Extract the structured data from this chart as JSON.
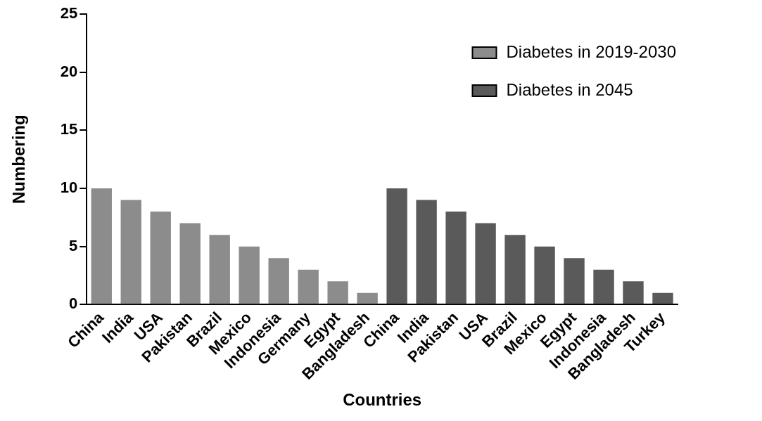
{
  "chart_data": {
    "type": "bar",
    "xlabel": "Countries",
    "ylabel": "Numbering",
    "categories": [
      "China",
      "India",
      "USA",
      "Pakistan",
      "Brazil",
      "Mexico",
      "Indonesia",
      "Germany",
      "Egypt",
      "Bangladesh",
      "China",
      "India",
      "Pakistan",
      "USA",
      "Brazil",
      "Mexico",
      "Egypt",
      "Indonesia",
      "Bangladesh",
      "Turkey"
    ],
    "series": [
      {
        "name": "Diabetes in 2019-2030",
        "color": "#8c8c8c",
        "values": [
          10,
          9,
          8,
          7,
          6,
          5,
          4,
          3,
          2,
          1,
          null,
          null,
          null,
          null,
          null,
          null,
          null,
          null,
          null,
          null
        ]
      },
      {
        "name": "Diabetes in 2045",
        "color": "#5a5a5a",
        "values": [
          null,
          null,
          null,
          null,
          null,
          null,
          null,
          null,
          null,
          null,
          10,
          9,
          8,
          7,
          6,
          5,
          4,
          3,
          2,
          1
        ]
      }
    ],
    "ylim": [
      0,
      25
    ],
    "yticks": [
      0,
      5,
      10,
      15,
      20,
      25
    ],
    "grid": false,
    "legend": "top right"
  }
}
